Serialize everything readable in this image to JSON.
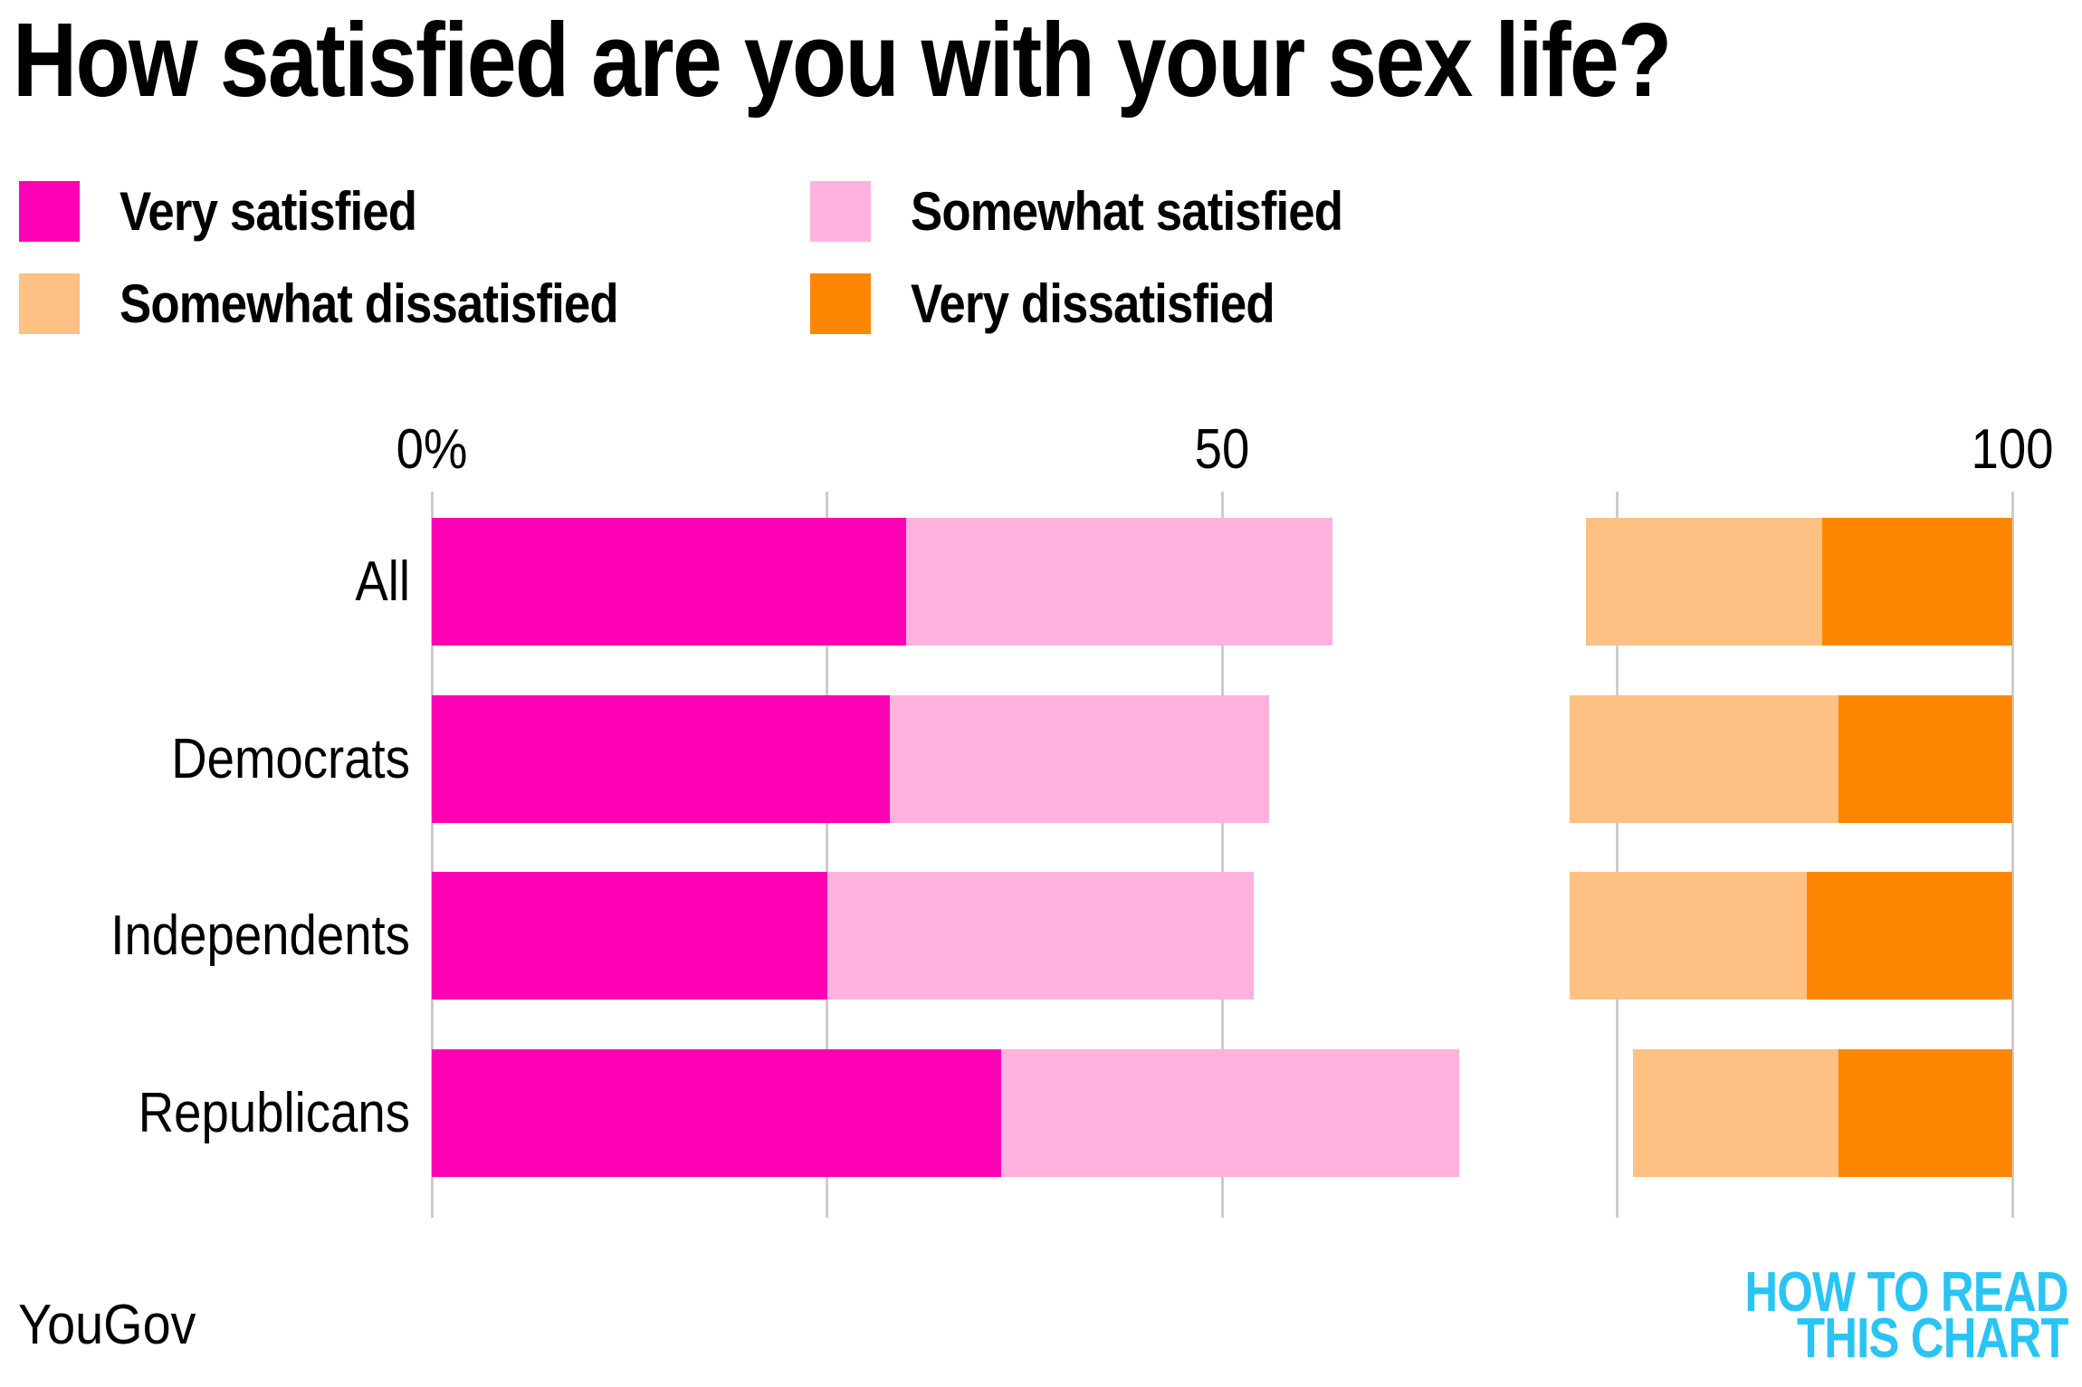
{
  "title": "How satisfied are you with your sex life?",
  "source": "YouGov",
  "logo": {
    "line1": "HOW TO READ",
    "line2": "THIS CHART",
    "color": "#29c4f4"
  },
  "colors": {
    "very_satisfied": "#ff00b4",
    "somewhat_satisfied": "#ffb2de",
    "somewhat_dissatisfied": "#ffc083",
    "very_dissatisfied": "#ff8600",
    "gridline": "#cccccc"
  },
  "chart_data": {
    "type": "bar",
    "orientation": "horizontal",
    "stacked": true,
    "title": "How satisfied are you with your sex life?",
    "categories": [
      "All",
      "Democrats",
      "Independents",
      "Republicans"
    ],
    "series": [
      {
        "name": "Very satisfied",
        "color": "#ff00b4",
        "anchor": "left",
        "values": [
          30,
          29,
          25,
          36
        ]
      },
      {
        "name": "Somewhat satisfied",
        "color": "#ffb2de",
        "anchor": "left",
        "values": [
          27,
          24,
          27,
          29
        ]
      },
      {
        "name": "Somewhat dissatisfied",
        "color": "#ffc083",
        "anchor": "right",
        "values": [
          15,
          17,
          15,
          13
        ]
      },
      {
        "name": "Very dissatisfied",
        "color": "#ff8600",
        "anchor": "right",
        "values": [
          12,
          11,
          13,
          11
        ]
      }
    ],
    "xlim": [
      0,
      100
    ],
    "axis_ticks": [
      {
        "value": 0,
        "label": "0%"
      },
      {
        "value": 50,
        "label": "50"
      },
      {
        "value": 100,
        "label": "100"
      }
    ],
    "gridline_values": [
      0,
      25,
      50,
      75,
      100
    ],
    "legend_position": "top",
    "grid": true,
    "note": "Satisfied segments anchored at 0; dissatisfied segments anchored at 100; remainder (no answer) left blank in the middle."
  }
}
